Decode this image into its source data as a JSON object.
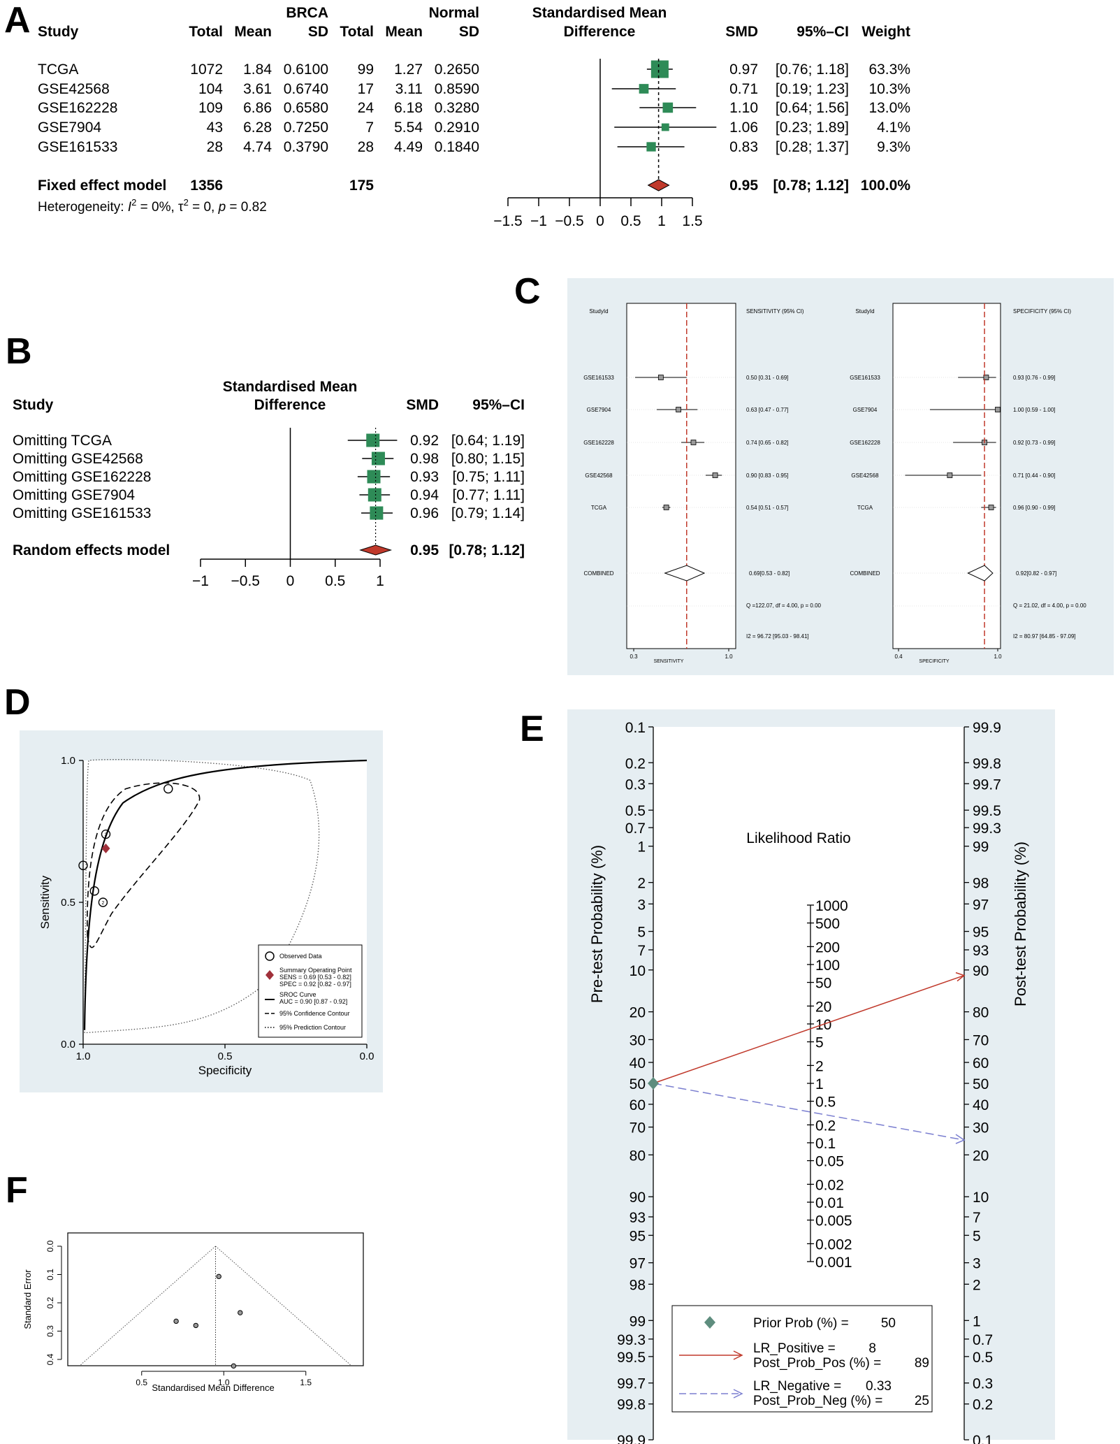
{
  "panel_letters": [
    "A",
    "B",
    "C",
    "D",
    "E",
    "F"
  ],
  "colors": {
    "green": "#2e8b57",
    "red": "#c0392b",
    "panel_bg": "#e6eef2",
    "blue_dash": "#7b7fd0",
    "roc": "#000000"
  },
  "chart_data": [
    {
      "type": "forest",
      "panel": "A",
      "group_headers": {
        "brca": "BRCA",
        "normal": "Normal"
      },
      "columns": [
        "Study",
        "Total",
        "Mean",
        "SD",
        "Total",
        "Mean",
        "SD"
      ],
      "smd_header": [
        "Standardised Mean",
        "Difference"
      ],
      "right_headers": [
        "SMD",
        "95%–CI",
        "Weight"
      ],
      "rows": [
        {
          "study": "TCGA",
          "total1": "1072",
          "mean1": "1.84",
          "sd1": "0.6100",
          "total2": "99",
          "mean2": "1.27",
          "sd2": "0.2650",
          "smd": 0.97,
          "lo": 0.76,
          "hi": 1.18,
          "smd_text": "0.97",
          "ci_text": "[0.76; 1.18]",
          "weight": "63.3%",
          "w": 63.3
        },
        {
          "study": "GSE42568",
          "total1": "104",
          "mean1": "3.61",
          "sd1": "0.6740",
          "total2": "17",
          "mean2": "3.11",
          "sd2": "0.8590",
          "smd": 0.71,
          "lo": 0.19,
          "hi": 1.23,
          "smd_text": "0.71",
          "ci_text": "[0.19; 1.23]",
          "weight": "10.3%",
          "w": 10.3
        },
        {
          "study": "GSE162228",
          "total1": "109",
          "mean1": "6.86",
          "sd1": "0.6580",
          "total2": "24",
          "mean2": "6.18",
          "sd2": "0.3280",
          "smd": 1.1,
          "lo": 0.64,
          "hi": 1.56,
          "smd_text": "1.10",
          "ci_text": "[0.64; 1.56]",
          "weight": "13.0%",
          "w": 13.0
        },
        {
          "study": "GSE7904",
          "total1": "43",
          "mean1": "6.28",
          "sd1": "0.7250",
          "total2": "7",
          "mean2": "5.54",
          "sd2": "0.2910",
          "smd": 1.06,
          "lo": 0.23,
          "hi": 1.89,
          "smd_text": "1.06",
          "ci_text": "[0.23; 1.89]",
          "weight": "4.1%",
          "w": 4.1
        },
        {
          "study": "GSE161533",
          "total1": "28",
          "mean1": "4.74",
          "sd1": "0.3790",
          "total2": "28",
          "mean2": "4.49",
          "sd2": "0.1840",
          "smd": 0.83,
          "lo": 0.28,
          "hi": 1.37,
          "smd_text": "0.83",
          "ci_text": "[0.28; 1.37]",
          "weight": "9.3%",
          "w": 9.3
        }
      ],
      "summary": {
        "label": "Fixed effect model",
        "total1": "1356",
        "total2": "175",
        "smd": 0.95,
        "lo": 0.78,
        "hi": 1.12,
        "smd_text": "0.95",
        "ci_text": "[0.78; 1.12]",
        "weight": "100.0%"
      },
      "heterogeneity": {
        "prefix": "Heterogeneity: ",
        "i2": "I",
        "i2_rest": " = 0%, ",
        "tau": "τ",
        "tau_rest": " = 0, ",
        "p": "p",
        "p_rest": " = 0.82"
      },
      "xlim": [
        -1.5,
        1.5
      ],
      "ticks": [
        "−1.5",
        "−1",
        "−0.5",
        "0",
        "0.5",
        "1",
        "1.5"
      ],
      "tick_values": [
        -1.5,
        -1,
        -0.5,
        0,
        0.5,
        1,
        1.5
      ]
    },
    {
      "type": "forest",
      "panel": "B",
      "smd_header": [
        "Standardised Mean",
        "Difference"
      ],
      "study_header": "Study",
      "right_headers": [
        "SMD",
        "95%–CI"
      ],
      "rows": [
        {
          "study": "Omitting TCGA",
          "smd": 0.92,
          "lo": 0.64,
          "hi": 1.19,
          "smd_text": "0.92",
          "ci_text": "[0.64; 1.19]"
        },
        {
          "study": "Omitting GSE42568",
          "smd": 0.98,
          "lo": 0.8,
          "hi": 1.15,
          "smd_text": "0.98",
          "ci_text": "[0.80; 1.15]"
        },
        {
          "study": "Omitting GSE162228",
          "smd": 0.93,
          "lo": 0.75,
          "hi": 1.11,
          "smd_text": "0.93",
          "ci_text": "[0.75; 1.11]"
        },
        {
          "study": "Omitting GSE7904",
          "smd": 0.94,
          "lo": 0.77,
          "hi": 1.11,
          "smd_text": "0.94",
          "ci_text": "[0.77; 1.11]"
        },
        {
          "study": "Omitting GSE161533",
          "smd": 0.96,
          "lo": 0.79,
          "hi": 1.14,
          "smd_text": "0.96",
          "ci_text": "[0.79; 1.14]"
        }
      ],
      "summary": {
        "label": "Random effects model",
        "smd": 0.95,
        "lo": 0.78,
        "hi": 1.12,
        "smd_text": "0.95",
        "ci_text": "[0.78; 1.12]"
      },
      "xlim": [
        -1,
        1
      ],
      "ticks": [
        "−1",
        "−0.5",
        "0",
        "0.5",
        "1"
      ],
      "tick_values": [
        -1,
        -0.5,
        0,
        0.5,
        1
      ]
    },
    {
      "type": "forest",
      "panel": "C",
      "left": {
        "studyid_header": "StudyId",
        "ci_header": "SENSITIVITY (95% CI)",
        "axis_label": "SENSITIVITY",
        "xlim": [
          0.3,
          1.0
        ],
        "ticks": [
          "0.3",
          "1.0"
        ],
        "tick_values": [
          0.3,
          1.0
        ],
        "pooled": 0.69,
        "rows": [
          {
            "study": "GSE161533",
            "est": 0.5,
            "lo": 0.31,
            "hi": 0.69,
            "text": "0.50 [0.31 - 0.69]"
          },
          {
            "study": "GSE7904",
            "est": 0.63,
            "lo": 0.47,
            "hi": 0.77,
            "text": "0.63 [0.47 - 0.77]"
          },
          {
            "study": "GSE162228",
            "est": 0.74,
            "lo": 0.65,
            "hi": 0.82,
            "text": "0.74 [0.65 - 0.82]"
          },
          {
            "study": "GSE42568",
            "est": 0.9,
            "lo": 0.83,
            "hi": 0.95,
            "text": "0.90 [0.83 - 0.95]"
          },
          {
            "study": "TCGA",
            "est": 0.54,
            "lo": 0.51,
            "hi": 0.57,
            "text": "0.54 [0.51 - 0.57]"
          }
        ],
        "combined": {
          "label": "COMBINED",
          "est": 0.69,
          "lo": 0.53,
          "hi": 0.82,
          "text": "0.69[0.53 - 0.82]"
        },
        "q_text": "Q =122.07, df = 4.00, p =  0.00",
        "i2_text": "I2 = 96.72 [95.03 - 98.41]"
      },
      "right": {
        "studyid_header": "StudyId",
        "ci_header": "SPECIFICITY (95% CI)",
        "axis_label": "SPECIFICITY",
        "xlim": [
          0.4,
          1.0
        ],
        "ticks": [
          "0.4",
          "1.0"
        ],
        "tick_values": [
          0.4,
          1.0
        ],
        "pooled": 0.92,
        "rows": [
          {
            "study": "GSE161533",
            "est": 0.93,
            "lo": 0.76,
            "hi": 0.99,
            "text": "0.93 [0.76 - 0.99]"
          },
          {
            "study": "GSE7904",
            "est": 1.0,
            "lo": 0.59,
            "hi": 1.0,
            "text": "1.00 [0.59 - 1.00]"
          },
          {
            "study": "GSE162228",
            "est": 0.92,
            "lo": 0.73,
            "hi": 0.99,
            "text": "0.92 [0.73 - 0.99]"
          },
          {
            "study": "GSE42568",
            "est": 0.71,
            "lo": 0.44,
            "hi": 0.9,
            "text": "0.71 [0.44 - 0.90]"
          },
          {
            "study": "TCGA",
            "est": 0.96,
            "lo": 0.9,
            "hi": 0.99,
            "text": "0.96 [0.90 - 0.99]"
          }
        ],
        "combined": {
          "label": "COMBINED",
          "est": 0.92,
          "lo": 0.82,
          "hi": 0.97,
          "text": "0.92[0.82 - 0.97]"
        },
        "q_text": "Q = 21.02, df = 4.00, p =  0.00",
        "i2_text": "I2 = 80.97 [64.85 - 97.09]"
      }
    },
    {
      "type": "scatter",
      "panel": "D",
      "xlabel": "Specificity",
      "ylabel": "Sensitivity",
      "xlim": [
        1.0,
        0.0
      ],
      "ylim": [
        0.0,
        1.0
      ],
      "xticks": [
        "1.0",
        "0.5",
        "0.0"
      ],
      "xtick_values": [
        1.0,
        0.5,
        0.0
      ],
      "yticks": [
        "0.0",
        "0.5",
        "1.0"
      ],
      "ytick_values": [
        0.0,
        0.5,
        1.0
      ],
      "observed": [
        {
          "spec": 0.7,
          "sens": 0.9,
          "n": ""
        },
        {
          "spec": 0.92,
          "sens": 0.74,
          "n": "3"
        },
        {
          "spec": 1.0,
          "sens": 0.63,
          "n": ""
        },
        {
          "spec": 0.96,
          "sens": 0.54,
          "n": ""
        },
        {
          "spec": 0.93,
          "sens": 0.5,
          "n": "2"
        }
      ],
      "summary_point": {
        "spec": 0.92,
        "sens": 0.69
      },
      "legend": [
        "Observed Data",
        "Summary Operating Point",
        "SENS = 0.69 [0.53 - 0.82]",
        "SPEC = 0.92 [0.82 - 0.97]",
        "SROC Curve",
        "AUC = 0.90 [0.87 - 0.92]",
        "95% Confidence Contour",
        "95% Prediction Contour"
      ]
    },
    {
      "type": "nomogram",
      "panel": "E",
      "left_label": "Pre-test Probability (%)",
      "right_label": "Post-test Probability (%)",
      "middle_label": "Likelihood Ratio",
      "prob_ticks": [
        "0.1",
        "0.2",
        "0.3",
        "0.5",
        "0.7",
        "1",
        "2",
        "3",
        "5",
        "7",
        "10",
        "20",
        "30",
        "40",
        "50",
        "60",
        "70",
        "80",
        "90",
        "93",
        "95",
        "97",
        "98",
        "99",
        "99.3",
        "99.5",
        "99.7",
        "99.8",
        "99.9"
      ],
      "prob_values": [
        0.1,
        0.2,
        0.3,
        0.5,
        0.7,
        1,
        2,
        3,
        5,
        7,
        10,
        20,
        30,
        40,
        50,
        60,
        70,
        80,
        90,
        93,
        95,
        97,
        98,
        99,
        99.3,
        99.5,
        99.7,
        99.8,
        99.9
      ],
      "lr_ticks": [
        "1000",
        "500",
        "200",
        "100",
        "50",
        "20",
        "10",
        "5",
        "2",
        "1",
        "0.5",
        "0.2",
        "0.1",
        "0.05",
        "0.02",
        "0.01",
        "0.005",
        "0.002",
        "0.001"
      ],
      "lr_values": [
        1000,
        500,
        200,
        100,
        50,
        20,
        10,
        5,
        2,
        1,
        0.5,
        0.2,
        0.1,
        0.05,
        0.02,
        0.01,
        0.005,
        0.002,
        0.001
      ],
      "prior_prob": 50,
      "lr_positive": 8,
      "post_prob_pos": 89,
      "lr_negative": 0.33,
      "post_prob_neg": 25,
      "legend": {
        "prior": "Prior Prob (%) =",
        "prior_val": "50",
        "lrpos": "LR_Positive =",
        "lrpos_val": "8",
        "postpos": "Post_Prob_Pos (%) =",
        "postpos_val": "89",
        "lrneg": "LR_Negative =",
        "lrneg_val": "0.33",
        "postneg": "Post_Prob_Neg (%) =",
        "postneg_val": "25"
      }
    },
    {
      "type": "scatter",
      "panel": "F",
      "xlabel": "Standardised Mean Difference",
      "ylabel": "Standard Error",
      "xlim": [
        0.05,
        1.85
      ],
      "ylim": [
        0.0,
        0.42
      ],
      "xticks": [
        "0.5",
        "1.0",
        "1.5"
      ],
      "xtick_values": [
        0.5,
        1.0,
        1.5
      ],
      "yticks": [
        "0.0",
        "0.1",
        "0.2",
        "0.3",
        "0.4"
      ],
      "ytick_values": [
        0.0,
        0.1,
        0.2,
        0.3,
        0.4
      ],
      "pooled": 0.95,
      "points": [
        {
          "x": 0.97,
          "y": 0.107
        },
        {
          "x": 1.1,
          "y": 0.235
        },
        {
          "x": 0.71,
          "y": 0.265
        },
        {
          "x": 0.83,
          "y": 0.28
        },
        {
          "x": 1.06,
          "y": 0.423
        }
      ]
    }
  ]
}
